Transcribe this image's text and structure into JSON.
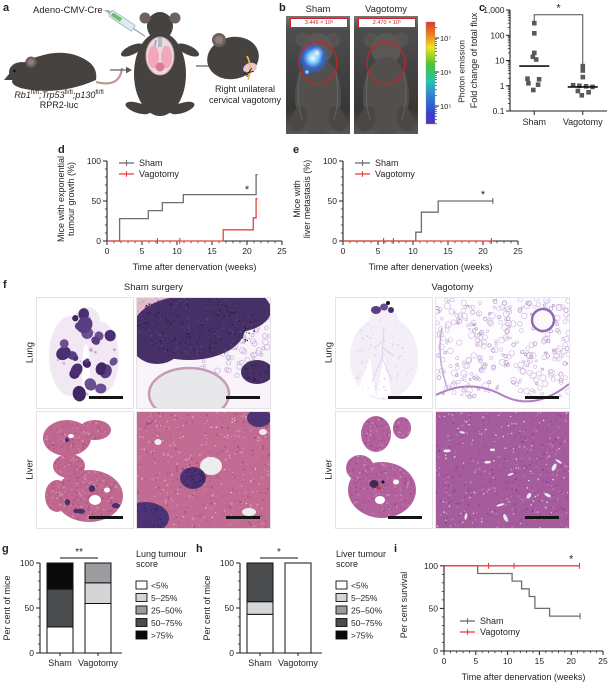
{
  "figure_labels": {
    "a": "a",
    "b": "b",
    "c": "c",
    "d": "d",
    "e": "e",
    "f": "f",
    "g": "g",
    "h": "h",
    "i": "i"
  },
  "panel_a": {
    "injection": "Adeno-CMV-Cre",
    "genotype": {
      "g1": "Rb1",
      "s1": "fl/fl",
      "sep1": ";",
      "g2": "Trp53",
      "s2": "fl/fl",
      "sep2": ";",
      "g3": "p130",
      "s3": "fl/fl"
    },
    "reporter": "RPR2-luc",
    "procedure_line1": "Right unilateral",
    "procedure_line2": "cervical vagotomy"
  },
  "panel_b": {
    "col1_title": "Sham",
    "col2_title": "Vagotomy",
    "col1_value": "3.446 × 10⁶",
    "col2_value": "2.470 × 10⁵",
    "colorbar": {
      "label": "Photon emission",
      "ticks": [
        "10⁷",
        "10⁶",
        "10⁵"
      ]
    }
  },
  "panel_f": {
    "sham_title": "Sham surgery",
    "vagotomy_title": "Vagotomy",
    "lung_label": "Lung",
    "liver_label": "Liver"
  },
  "colors": {
    "sham_line": "#6d6e71",
    "vagotomy_line": "#e8413a",
    "marker": "#58595b",
    "roi_red": "#cf2127"
  },
  "chart_data": [
    {
      "id": "c",
      "type": "scatter",
      "yscale": "log",
      "ylabel": "Fold change of total flux",
      "ylim": [
        0.1,
        1000
      ],
      "ytick_values": [
        0.1,
        1,
        10,
        100,
        1000
      ],
      "ytick_labels": [
        "0.1",
        "1",
        "10",
        "100",
        "1,000"
      ],
      "categories": [
        "Sham",
        "Vagotomy"
      ],
      "marker_color": "#58595b",
      "series": [
        {
          "name": "Sham",
          "median": 6,
          "points": [
            [
              0,
              300
            ],
            [
              0,
              120
            ],
            [
              0,
              20
            ],
            [
              -0.03,
              14
            ],
            [
              0.04,
              11
            ],
            [
              -0.14,
              1.9
            ],
            [
              0.1,
              1.8
            ],
            [
              -0.12,
              1.25
            ],
            [
              0.08,
              1.1
            ],
            [
              -0.02,
              0.68
            ]
          ]
        },
        {
          "name": "Vagotomy",
          "median": 0.9,
          "points": [
            [
              0,
              6
            ],
            [
              0,
              4
            ],
            [
              0,
              2.2
            ],
            [
              -0.2,
              1.05
            ],
            [
              -0.07,
              1.0
            ],
            [
              0.07,
              0.95
            ],
            [
              0.2,
              0.9
            ],
            [
              -0.1,
              0.62
            ],
            [
              0.12,
              0.55
            ],
            [
              -0.02,
              0.42
            ]
          ]
        }
      ],
      "significance": "*"
    },
    {
      "id": "d",
      "type": "step",
      "ylabel_lines": [
        "Mice with exponential",
        "tumour growth (%)"
      ],
      "xlabel": "Time after denervation (weeks)",
      "xlim": [
        0,
        25
      ],
      "ylim": [
        0,
        105
      ],
      "xticks": [
        0,
        5,
        10,
        15,
        20,
        25
      ],
      "yticks": [
        0,
        50,
        100
      ],
      "series": [
        {
          "name": "Sham",
          "color": "#6d6e71",
          "steps": [
            [
              0,
              0
            ],
            [
              1.8,
              28
            ],
            [
              5.9,
              38
            ],
            [
              7.9,
              48
            ],
            [
              10.9,
              58
            ],
            [
              21.3,
              83
            ]
          ],
          "end": 21.5,
          "ticks": []
        },
        {
          "name": "Vagotomy",
          "color": "#e8413a",
          "steps": [
            [
              0,
              0
            ],
            [
              16.6,
              14
            ],
            [
              20.9,
              29
            ],
            [
              21.3,
              53
            ]
          ],
          "end": 21.5,
          "ticks": [
            [
              7.2,
              0
            ],
            [
              10.4,
              0
            ]
          ]
        }
      ],
      "legend": {
        "pos": "top-left"
      },
      "sig": {
        "x": 20,
        "y": 60,
        "text": "*"
      }
    },
    {
      "id": "e",
      "type": "step",
      "ylabel_lines": [
        "Mice with",
        "liver metastasis (%)"
      ],
      "xlabel": "Time after denervation (weeks)",
      "xlim": [
        0,
        25
      ],
      "ylim": [
        0,
        105
      ],
      "xticks": [
        0,
        5,
        10,
        15,
        20,
        25
      ],
      "yticks": [
        0,
        50,
        100
      ],
      "series": [
        {
          "name": "Sham",
          "color": "#6d6e71",
          "steps": [
            [
              0,
              0
            ],
            [
              10.4,
              11
            ],
            [
              11.2,
              36
            ],
            [
              13.6,
              50
            ]
          ],
          "end": 21.5,
          "ticks": [
            [
              5.8,
              0
            ],
            [
              21.4,
              50
            ]
          ]
        },
        {
          "name": "Vagotomy",
          "color": "#e8413a",
          "steps": [
            [
              0,
              0
            ]
          ],
          "end": 21.4,
          "ticks": [
            [
              7.2,
              0
            ],
            [
              21.2,
              0
            ]
          ]
        }
      ],
      "legend": {
        "pos": "top-left"
      },
      "sig": {
        "x": 20,
        "y": 54,
        "text": "*"
      }
    },
    {
      "id": "g",
      "type": "stacked_bar",
      "ylabel": "Per cent of mice",
      "ylim": [
        0,
        100
      ],
      "yticks": [
        0,
        50,
        100
      ],
      "legend_title_lines": [
        "Lung tumour",
        "score"
      ],
      "scores": [
        {
          "label": "<5%",
          "color": "#ffffff"
        },
        {
          "label": "5–25%",
          "color": "#d4d5d7"
        },
        {
          "label": "25–50%",
          "color": "#9b9da0"
        },
        {
          "label": "50–75%",
          "color": "#4b4c4e"
        },
        {
          "label": ">75%",
          "color": "#0a0a0a"
        }
      ],
      "bars": [
        {
          "category": "Sham",
          "segments": [
            {
              "score": "<5%",
              "value": 29
            },
            {
              "score": "50–75%",
              "value": 42
            },
            {
              "score": ">75%",
              "value": 29
            }
          ]
        },
        {
          "category": "Vagotomy",
          "segments": [
            {
              "score": "<5%",
              "value": 55
            },
            {
              "score": "5–25%",
              "value": 23
            },
            {
              "score": "25–50%",
              "value": 22
            }
          ]
        }
      ],
      "significance": "**"
    },
    {
      "id": "h",
      "type": "stacked_bar",
      "ylabel": "Per cent of mice",
      "ylim": [
        0,
        100
      ],
      "yticks": [
        0,
        50,
        100
      ],
      "legend_title_lines": [
        "Liver tumour",
        "score"
      ],
      "scores": [
        {
          "label": "<5%",
          "color": "#ffffff"
        },
        {
          "label": "5–25%",
          "color": "#d4d5d7"
        },
        {
          "label": "25–50%",
          "color": "#9b9da0"
        },
        {
          "label": "50–75%",
          "color": "#4b4c4e"
        },
        {
          "label": ">75%",
          "color": "#0a0a0a"
        }
      ],
      "bars": [
        {
          "category": "Sham",
          "segments": [
            {
              "score": "<5%",
              "value": 43
            },
            {
              "score": "5–25%",
              "value": 14
            },
            {
              "score": "50–75%",
              "value": 43
            }
          ]
        },
        {
          "category": "Vagotomy",
          "segments": [
            {
              "score": "<5%",
              "value": 100
            }
          ]
        }
      ],
      "significance": "*"
    },
    {
      "id": "i",
      "type": "step",
      "ylabel_lines": [
        "Per cent survival"
      ],
      "xlabel": "Time after denervation (weeks)",
      "xlim": [
        0,
        25
      ],
      "ylim": [
        0,
        108
      ],
      "xticks": [
        0,
        5,
        10,
        15,
        20,
        25
      ],
      "yticks": [
        0,
        50,
        100
      ],
      "series": [
        {
          "name": "Sham",
          "color": "#6d6e71",
          "steps": [
            [
              0,
              100
            ],
            [
              5.3,
              91
            ],
            [
              10.7,
              82
            ],
            [
              12.2,
              73
            ],
            [
              13.4,
              64
            ],
            [
              14.3,
              50
            ],
            [
              16.6,
              41
            ]
          ],
          "end": 21.4,
          "ticks": [
            [
              21.4,
              41
            ]
          ]
        },
        {
          "name": "Vagotomy",
          "color": "#e8413a",
          "steps": [
            [
              0,
              100
            ]
          ],
          "end": 21.3,
          "ticks": [
            [
              7,
              100
            ],
            [
              11,
              100
            ],
            [
              21.3,
              100
            ]
          ]
        }
      ],
      "legend": {
        "pos": "bottom-left"
      },
      "sig": {
        "x": 20,
        "y": 104,
        "text": "*"
      }
    }
  ]
}
